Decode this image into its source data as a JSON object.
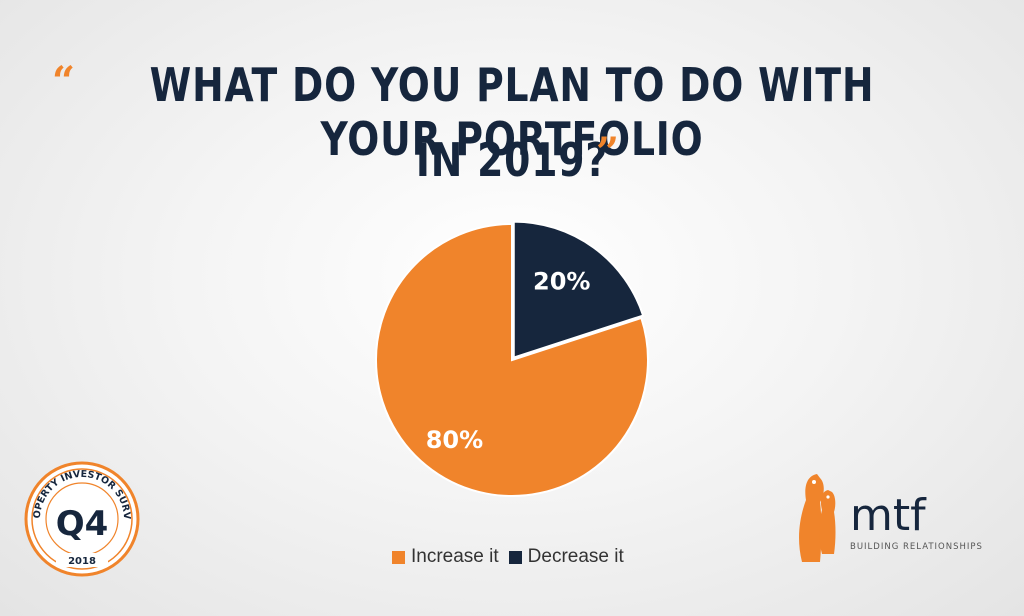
{
  "header": {
    "open_quote": "“",
    "title_line1": "WHAT DO YOU PLAN TO DO WITH YOUR PORTFOLIO",
    "title_line2": "IN 2019?",
    "close_quote": "”"
  },
  "chart_data": {
    "type": "pie",
    "title": "WHAT DO YOU PLAN TO DO WITH YOUR PORTFOLIO IN 2019?",
    "slices": [
      {
        "label": "Decrease it",
        "value": 20,
        "display": "20%",
        "color": "#16263d"
      },
      {
        "label": "Increase it",
        "value": 80,
        "display": "80%",
        "color": "#f0842b"
      }
    ],
    "legend": [
      "Increase it",
      "Decrease it"
    ],
    "legend_placement": "bottom"
  },
  "badge": {
    "arc_text": "PROPERTY INVESTOR SURVEY",
    "quarter": "Q4",
    "year": "2018",
    "colors": {
      "accent": "#f0842b",
      "dark": "#16263d"
    }
  },
  "logo": {
    "name": "mtf",
    "tagline": "BUILDING RELATIONSHIPS",
    "icon": "penguins-icon"
  }
}
